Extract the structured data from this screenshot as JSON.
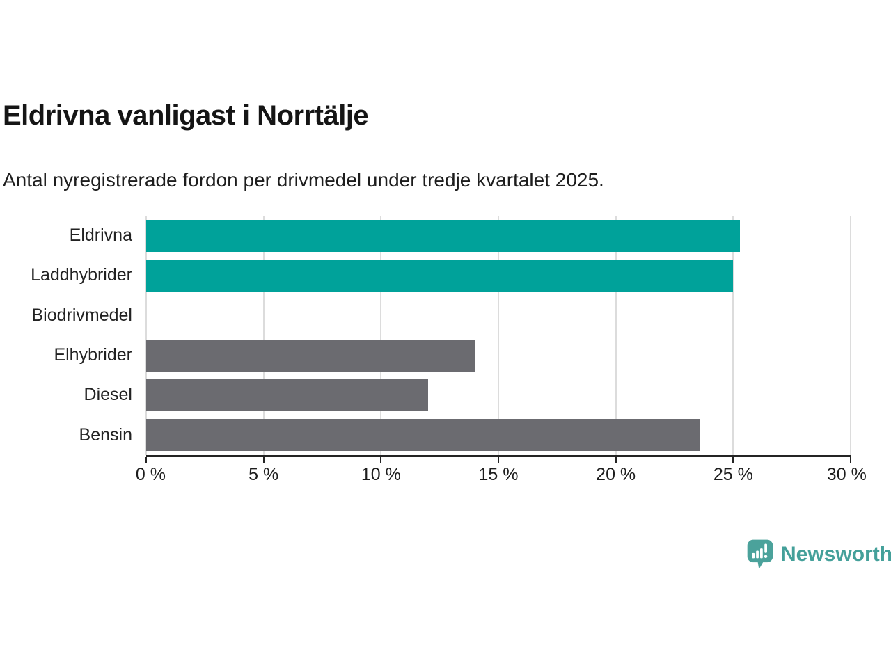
{
  "header": {
    "title": "Eldrivna vanligast i Norrtälje",
    "subtitle": "Antal nyregistrerade fordon per drivmedel under tredje kvartalet 2025."
  },
  "chart_data": {
    "type": "bar",
    "orientation": "horizontal",
    "title": "Eldrivna vanligast i Norrtälje",
    "xlabel": "",
    "ylabel": "",
    "unit": "%",
    "xlim": [
      0,
      30
    ],
    "grid": "vertical",
    "categories": [
      "Eldrivna",
      "Laddhybrider",
      "Biodrivmedel",
      "Elhybrider",
      "Diesel",
      "Bensin"
    ],
    "values": [
      25.3,
      25,
      0,
      14,
      12,
      23.6
    ],
    "highlighted": [
      true,
      true,
      false,
      false,
      false,
      false
    ],
    "x_ticks": [
      {
        "value": 0,
        "label": "0 %"
      },
      {
        "value": 5,
        "label": "5 %"
      },
      {
        "value": 10,
        "label": "10 %"
      },
      {
        "value": 15,
        "label": "15 %"
      },
      {
        "value": 20,
        "label": "20 %"
      },
      {
        "value": 25,
        "label": "25 %"
      },
      {
        "value": 30,
        "label": "30 %"
      }
    ],
    "colors": {
      "highlight": "#00a29a",
      "default": "#6b6b70",
      "gridline": "#dcdcdc",
      "axis": "#242424"
    }
  },
  "footer": {
    "brand": "Newsworthy",
    "logo_icon": "newsworthy-speech-bubble-chart-icon",
    "brand_color": "#44a09a",
    "logo_fill": "#4ba29b"
  }
}
